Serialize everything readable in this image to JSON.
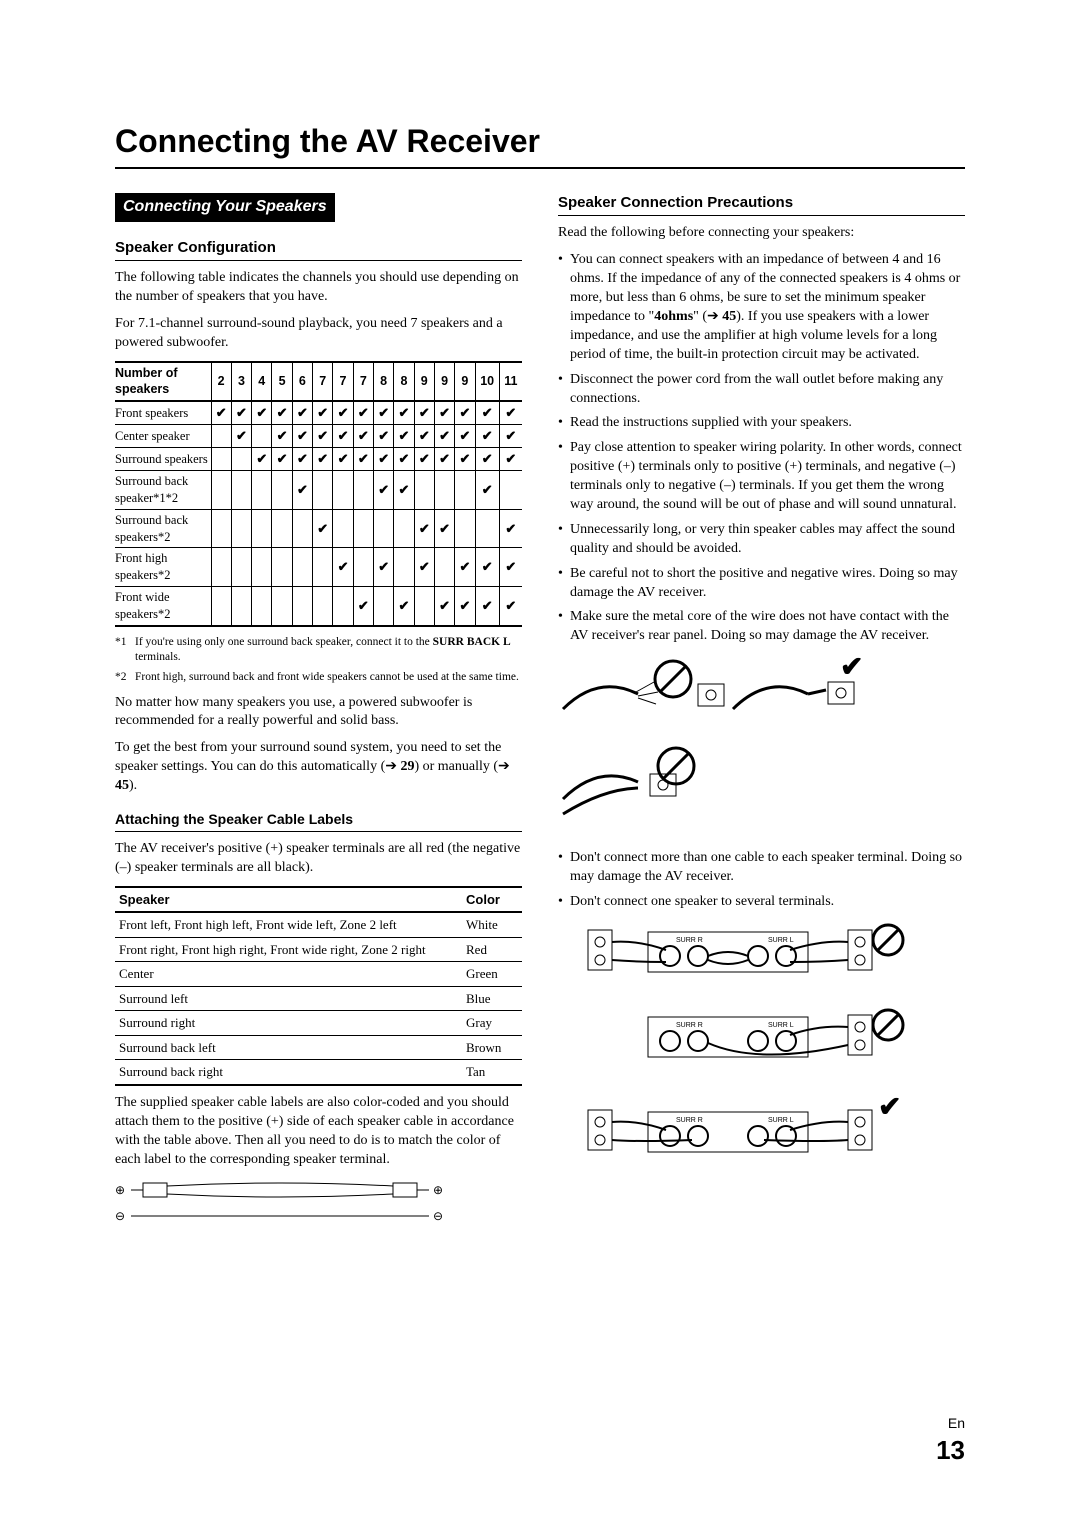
{
  "page": {
    "title": "Connecting the AV Receiver",
    "lang": "En",
    "number": "13"
  },
  "left": {
    "ribbon": "Connecting Your Speakers",
    "h_config": "Speaker Configuration",
    "p_intro1": "The following table indicates the channels you should use depending on the number of speakers that you have.",
    "p_intro2": "For 7.1-channel surround-sound playback, you need 7 speakers and a powered subwoofer.",
    "config_table": {
      "first_header": "Number of speakers",
      "cols": [
        "2",
        "3",
        "4",
        "5",
        "6",
        "7",
        "7",
        "7",
        "8",
        "8",
        "9",
        "9",
        "9",
        "10",
        "11"
      ],
      "rows": [
        {
          "label": "Front speakers",
          "cells": [
            1,
            1,
            1,
            1,
            1,
            1,
            1,
            1,
            1,
            1,
            1,
            1,
            1,
            1,
            1
          ]
        },
        {
          "label": "Center speaker",
          "cells": [
            0,
            1,
            0,
            1,
            1,
            1,
            1,
            1,
            1,
            1,
            1,
            1,
            1,
            1,
            1
          ]
        },
        {
          "label": "Surround speakers",
          "cells": [
            0,
            0,
            1,
            1,
            1,
            1,
            1,
            1,
            1,
            1,
            1,
            1,
            1,
            1,
            1
          ]
        },
        {
          "label": "Surround back speaker*1*2",
          "cells": [
            0,
            0,
            0,
            0,
            1,
            0,
            0,
            0,
            1,
            1,
            0,
            0,
            0,
            1,
            0
          ]
        },
        {
          "label": "Surround back speakers*2",
          "cells": [
            0,
            0,
            0,
            0,
            0,
            1,
            0,
            0,
            0,
            0,
            1,
            1,
            0,
            0,
            1
          ]
        },
        {
          "label": "Front high speakers*2",
          "cells": [
            0,
            0,
            0,
            0,
            0,
            0,
            1,
            0,
            1,
            0,
            1,
            0,
            1,
            1,
            1
          ]
        },
        {
          "label": "Front wide speakers*2",
          "cells": [
            0,
            0,
            0,
            0,
            0,
            0,
            0,
            1,
            0,
            1,
            0,
            1,
            1,
            1,
            1
          ]
        }
      ]
    },
    "fn1_num": "*1",
    "fn1_text": "If you're using only one surround back speaker, connect it to the ",
    "fn1_bold": "SURR BACK L",
    "fn1_tail": " terminals.",
    "fn2_num": "*2",
    "fn2_text": "Front high, surround back and front wide speakers cannot be used at the same time.",
    "p_after1": "No matter how many speakers you use, a powered subwoofer is recommended for a really powerful and solid bass.",
    "p_after2a": "To get the best from your surround sound system, you need to set the speaker settings. You can do this automatically (➔ ",
    "p_after2b_bold": "29",
    "p_after2c": ") or manually (➔ ",
    "p_after2d_bold": "45",
    "p_after2e": ").",
    "h_labels": "Attaching the Speaker Cable Labels",
    "p_labels": "The AV receiver's positive (+) speaker terminals are all red (the negative (–) speaker terminals are all black).",
    "color_table": {
      "headers": [
        "Speaker",
        "Color"
      ],
      "rows": [
        [
          "Front left, Front high left, Front wide left, Zone 2 left",
          "White"
        ],
        [
          "Front right, Front high right, Front wide right, Zone 2 right",
          "Red"
        ],
        [
          "Center",
          "Green"
        ],
        [
          "Surround left",
          "Blue"
        ],
        [
          "Surround right",
          "Gray"
        ],
        [
          "Surround back left",
          "Brown"
        ],
        [
          "Surround back right",
          "Tan"
        ]
      ]
    },
    "p_labels2": "The supplied speaker cable labels are also color-coded and you should attach them to the positive (+) side of each speaker cable in accordance with the table above. Then all you need to do is to match the color of each label to the corresponding speaker terminal."
  },
  "right": {
    "h_precautions": "Speaker Connection Precautions",
    "p_precautions_lead": "Read the following before connecting your speakers:",
    "bullet1a": "You can connect speakers with an impedance of between 4 and 16 ohms. If the impedance of any of the connected speakers is 4 ohms or more, but less than 6 ohms, be sure to set the minimum speaker impedance to \"",
    "bullet1b_bold": "4ohms",
    "bullet1c": "\" (➔ ",
    "bullet1d_bold": "45",
    "bullet1e": "). If you use speakers with a lower impedance, and use the amplifier at high volume levels for a long period of time, the built-in protection circuit may be activated.",
    "bullet2": "Disconnect the power cord from the wall outlet before making any connections.",
    "bullet3": "Read the instructions supplied with your speakers.",
    "bullet4": "Pay close attention to speaker wiring polarity. In other words, connect positive (+) terminals only to positive (+) terminals, and negative (–) terminals only to negative (–) terminals. If you get them the wrong way around, the sound will be out of phase and will sound unnatural.",
    "bullet5": "Unnecessarily long, or very thin speaker cables may affect the sound quality and should be avoided.",
    "bullet6": "Be careful not to short the positive and negative wires. Doing so may damage the AV receiver.",
    "bullet7": "Make sure the metal core of the wire does not have contact with the AV receiver's rear panel. Doing so may damage the AV receiver.",
    "bullet8": "Don't connect more than one cable to each speaker terminal. Doing so may damage the AV receiver.",
    "bullet9": "Don't connect one speaker to several terminals."
  }
}
